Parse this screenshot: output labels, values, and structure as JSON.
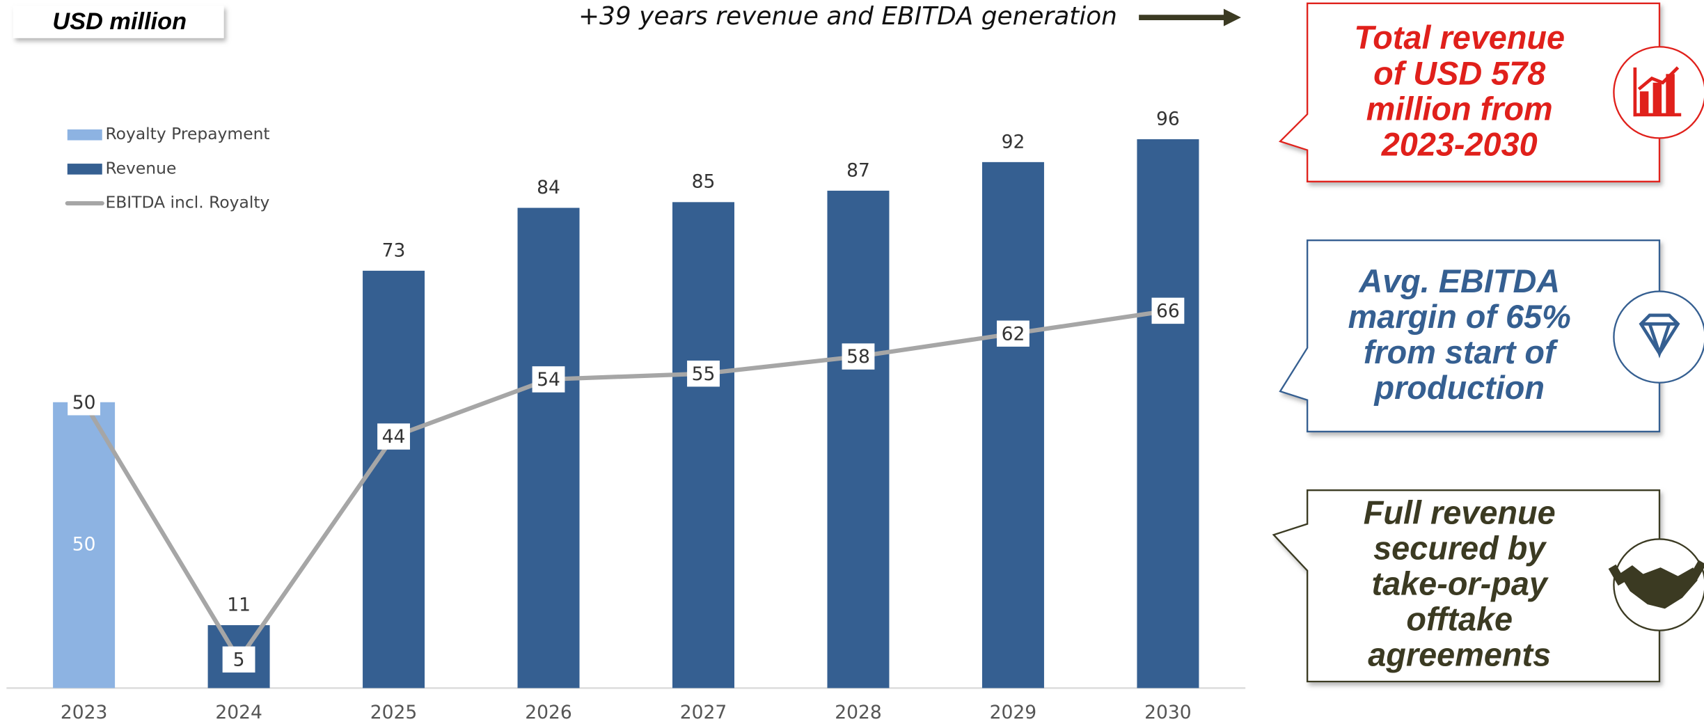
{
  "unit_label": "USD million",
  "headline": "+39 years revenue and EBITDA generation",
  "chart_data": {
    "type": "bar",
    "categories": [
      "2023",
      "2024",
      "2025",
      "2026",
      "2027",
      "2028",
      "2029",
      "2030"
    ],
    "series": [
      {
        "name": "Royalty Prepayment",
        "color": "#8db3e2",
        "values": [
          50,
          null,
          null,
          null,
          null,
          null,
          null,
          null
        ]
      },
      {
        "name": "Revenue",
        "color": "#355f91",
        "values": [
          null,
          11,
          73,
          84,
          85,
          87,
          92,
          96
        ]
      },
      {
        "name": "EBITDA incl. Royalty",
        "color": "#a6a6a6",
        "kind": "line",
        "values": [
          50,
          5,
          44,
          54,
          55,
          58,
          62,
          66
        ]
      }
    ],
    "ylim": [
      0,
      100
    ],
    "grid": false
  },
  "callouts": [
    {
      "lines": [
        "Total revenue",
        "of USD 578",
        "million from",
        "2023-2030"
      ]
    },
    {
      "lines": [
        "Avg. EBITDA",
        "margin of 65%",
        "from start of",
        "production"
      ]
    },
    {
      "lines": [
        "Full revenue",
        "secured by",
        "take-or-pay",
        "offtake",
        "agreements"
      ]
    }
  ]
}
